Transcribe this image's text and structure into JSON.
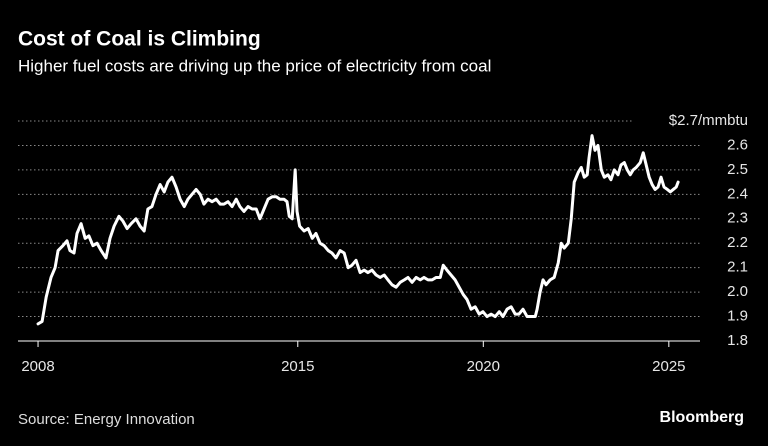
{
  "chart_data": {
    "type": "line",
    "title": "Cost of Coal is Climbing",
    "subtitle": "Higher fuel costs are driving up the price of electricity from coal",
    "source": "Source: Energy Innovation",
    "brand": "Bloomberg",
    "color": "#ffffff",
    "grid": true,
    "x": [
      2008.0,
      2008.11,
      2008.22,
      2008.35,
      2008.46,
      2008.54,
      2008.67,
      2008.78,
      2008.86,
      2008.97,
      2009.05,
      2009.16,
      2009.27,
      2009.37,
      2009.48,
      2009.59,
      2009.7,
      2009.83,
      2009.94,
      2010.05,
      2010.18,
      2010.29,
      2010.4,
      2010.51,
      2010.64,
      2010.75,
      2010.86,
      2010.96,
      2011.07,
      2011.18,
      2011.29,
      2011.4,
      2011.5,
      2011.61,
      2011.72,
      2011.83,
      2011.94,
      2012.04,
      2012.15,
      2012.26,
      2012.37,
      2012.47,
      2012.58,
      2012.69,
      2012.8,
      2012.91,
      2013.01,
      2013.12,
      2013.23,
      2013.34,
      2013.44,
      2013.55,
      2013.66,
      2013.77,
      2013.88,
      2013.98,
      2014.09,
      2014.2,
      2014.31,
      2014.42,
      2014.52,
      2014.63,
      2014.71,
      2014.77,
      2014.85,
      2014.93,
      2014.98,
      2015.05,
      2015.17,
      2015.28,
      2015.39,
      2015.49,
      2015.6,
      2015.71,
      2015.82,
      2015.92,
      2016.03,
      2016.14,
      2016.25,
      2016.36,
      2016.46,
      2016.57,
      2016.68,
      2016.79,
      2016.89,
      2017.0,
      2017.11,
      2017.22,
      2017.33,
      2017.43,
      2017.54,
      2017.65,
      2017.76,
      2017.87,
      2017.97,
      2018.08,
      2018.19,
      2018.3,
      2018.4,
      2018.51,
      2018.62,
      2018.73,
      2018.84,
      2018.92,
      2019.02,
      2019.13,
      2019.24,
      2019.35,
      2019.46,
      2019.56,
      2019.67,
      2019.78,
      2019.89,
      2019.99,
      2020.1,
      2020.21,
      2020.32,
      2020.43,
      2020.53,
      2020.64,
      2020.75,
      2020.86,
      2020.96,
      2021.07,
      2021.18,
      2021.29,
      2021.4,
      2021.45,
      2021.53,
      2021.61,
      2021.69,
      2021.8,
      2021.91,
      2022.02,
      2022.1,
      2022.18,
      2022.29,
      2022.37,
      2022.45,
      2022.56,
      2022.64,
      2022.72,
      2022.8,
      2022.85,
      2022.93,
      2023.01,
      2023.09,
      2023.18,
      2023.26,
      2023.36,
      2023.44,
      2023.53,
      2023.63,
      2023.71,
      2023.8,
      2023.88,
      2023.96,
      2024.04,
      2024.12,
      2024.23,
      2024.31,
      2024.39,
      2024.47,
      2024.55,
      2024.63,
      2024.71,
      2024.79,
      2024.87,
      2024.96,
      2025.04,
      2025.12,
      2025.2,
      2025.25
    ],
    "values": [
      1.87,
      1.88,
      1.98,
      2.06,
      2.1,
      2.17,
      2.19,
      2.21,
      2.17,
      2.16,
      2.24,
      2.28,
      2.22,
      2.23,
      2.19,
      2.2,
      2.17,
      2.14,
      2.22,
      2.27,
      2.31,
      2.29,
      2.26,
      2.28,
      2.3,
      2.27,
      2.25,
      2.34,
      2.35,
      2.4,
      2.44,
      2.41,
      2.45,
      2.47,
      2.43,
      2.38,
      2.35,
      2.38,
      2.4,
      2.42,
      2.4,
      2.36,
      2.38,
      2.37,
      2.38,
      2.36,
      2.36,
      2.37,
      2.35,
      2.38,
      2.35,
      2.33,
      2.35,
      2.34,
      2.34,
      2.3,
      2.34,
      2.38,
      2.39,
      2.39,
      2.38,
      2.38,
      2.37,
      2.31,
      2.3,
      2.5,
      2.33,
      2.27,
      2.25,
      2.26,
      2.22,
      2.24,
      2.2,
      2.19,
      2.17,
      2.16,
      2.14,
      2.17,
      2.16,
      2.1,
      2.11,
      2.13,
      2.08,
      2.09,
      2.08,
      2.09,
      2.07,
      2.06,
      2.07,
      2.05,
      2.03,
      2.02,
      2.04,
      2.05,
      2.06,
      2.04,
      2.06,
      2.05,
      2.06,
      2.05,
      2.05,
      2.06,
      2.06,
      2.11,
      2.09,
      2.07,
      2.05,
      2.02,
      1.99,
      1.97,
      1.93,
      1.94,
      1.91,
      1.92,
      1.9,
      1.91,
      1.9,
      1.92,
      1.9,
      1.93,
      1.94,
      1.91,
      1.91,
      1.93,
      1.9,
      1.9,
      1.9,
      1.93,
      2.0,
      2.05,
      2.03,
      2.05,
      2.06,
      2.12,
      2.2,
      2.18,
      2.2,
      2.3,
      2.45,
      2.49,
      2.51,
      2.47,
      2.48,
      2.55,
      2.64,
      2.58,
      2.6,
      2.5,
      2.47,
      2.48,
      2.46,
      2.5,
      2.48,
      2.52,
      2.53,
      2.5,
      2.48,
      2.5,
      2.51,
      2.53,
      2.57,
      2.52,
      2.47,
      2.44,
      2.42,
      2.43,
      2.47,
      2.43,
      2.42,
      2.41,
      2.42,
      2.43,
      2.45
    ],
    "xlim": [
      2007.46,
      2025.84
    ],
    "xticks": [
      2008,
      2015,
      2020,
      2025
    ],
    "ylim": [
      1.8,
      2.7
    ],
    "yticks": [
      1.8,
      1.9,
      {
        "value": 2,
        "label": "2.0"
      },
      2.1,
      2.2,
      2.3,
      2.4,
      2.5,
      2.6,
      {
        "value": 2.7,
        "label": "$2.7/mmbtu"
      }
    ]
  }
}
